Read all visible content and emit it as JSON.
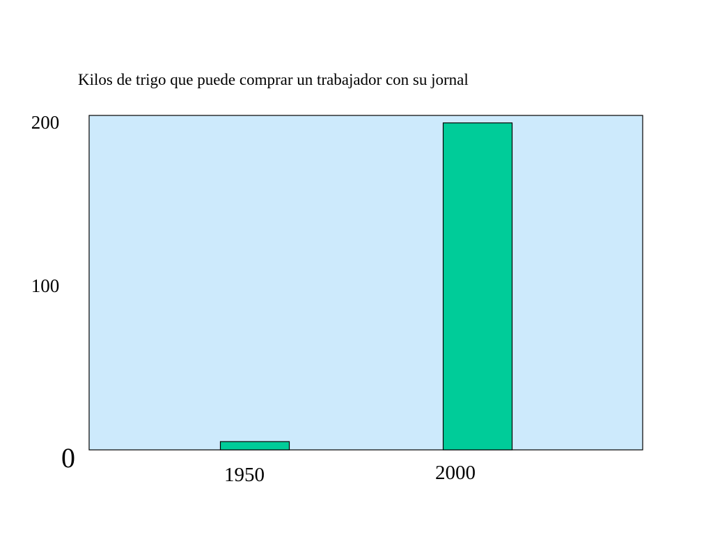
{
  "chart_data": {
    "type": "bar",
    "title": "Kilos de trigo que puede comprar un trabajador con su jornal",
    "categories": [
      "1950",
      "2000"
    ],
    "values": [
      5,
      198
    ],
    "ylim": [
      0,
      200
    ],
    "yticks": [
      "0",
      "100",
      "200"
    ],
    "xlabel": "",
    "ylabel": "",
    "grid": false,
    "legend": "none",
    "colors": {
      "plot_background": "#cdeafc",
      "bar_fill": "#00cc99",
      "bar_stroke": "#000000",
      "axis": "#000000"
    }
  }
}
